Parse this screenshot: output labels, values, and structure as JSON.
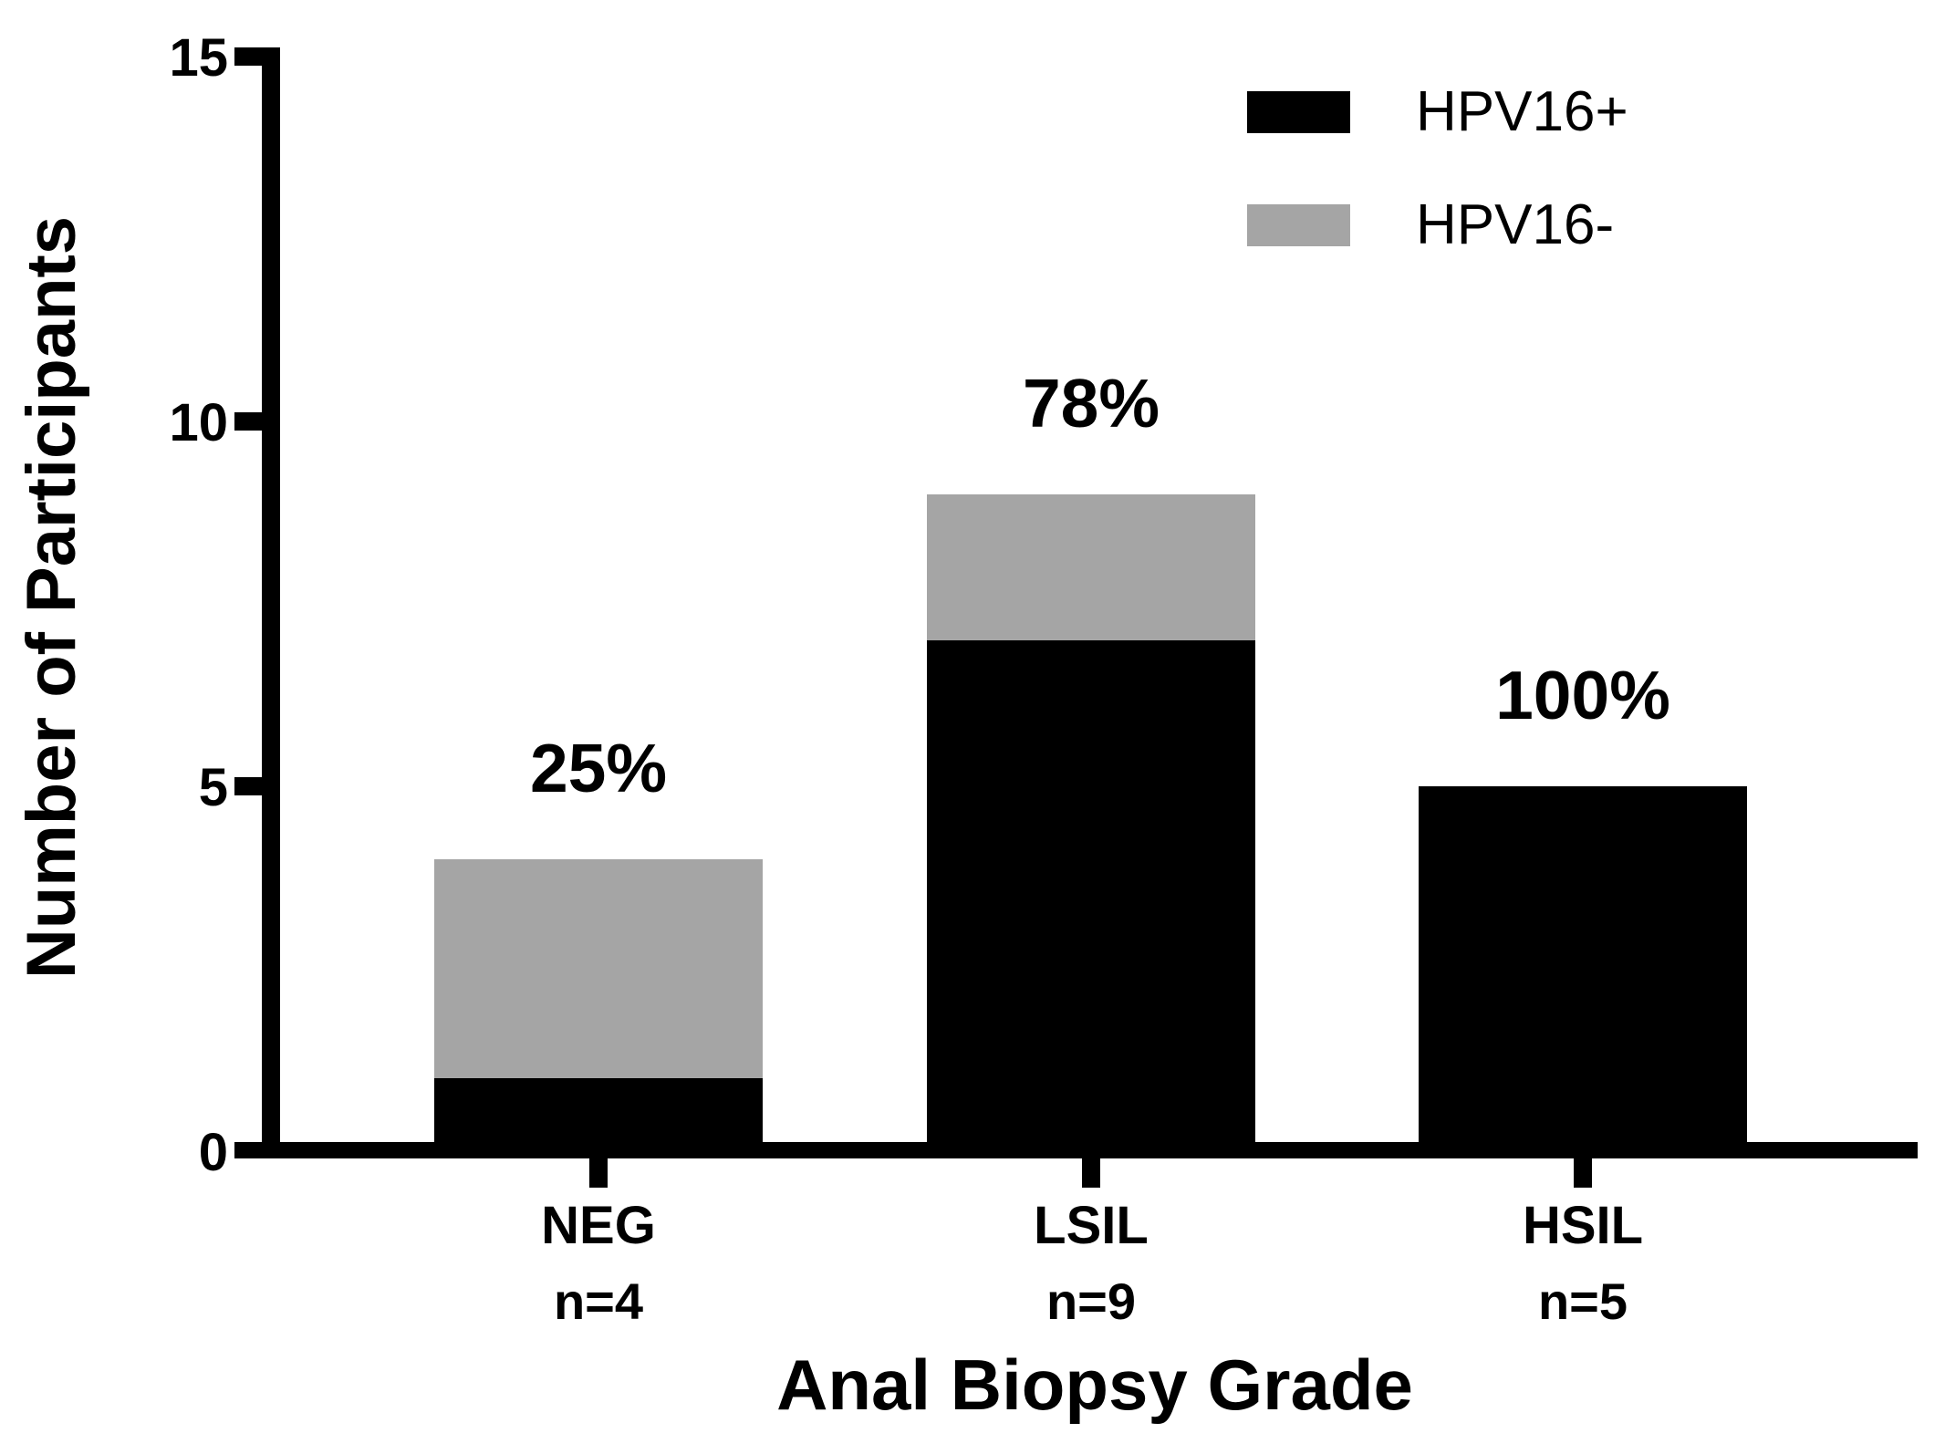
{
  "chart_data": {
    "type": "bar",
    "stacked": true,
    "title": "",
    "xlabel": "Anal Biopsy Grade",
    "ylabel": "Number of Participants",
    "ylim": [
      0,
      15
    ],
    "yticks": [
      0,
      5,
      10,
      15
    ],
    "grid": false,
    "legend_position": "top-right",
    "background_color": "#FFFFFF",
    "axis_color": "#000000",
    "categories": [
      "NEG",
      "LSIL",
      "HSIL"
    ],
    "category_sublabels": [
      "n=4",
      "n=9",
      "n=5"
    ],
    "bar_percent_labels": [
      "25%",
      "78%",
      "100%"
    ],
    "series": [
      {
        "name": "HPV16+",
        "color": "#000000",
        "values": [
          1,
          7,
          5
        ]
      },
      {
        "name": "HPV16-",
        "color": "#A5A5A5",
        "values": [
          3,
          2,
          0
        ]
      }
    ],
    "totals": [
      4,
      9,
      5
    ]
  }
}
